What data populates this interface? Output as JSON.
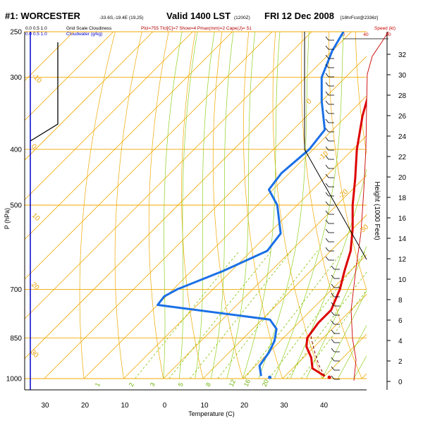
{
  "header": {
    "station": "#1: WORCESTER",
    "coords": "-33.6S,-19.4E (19,25)",
    "valid": "Valid 1400 LST",
    "utc": "(1200Z)",
    "date": "FRI 12 Dec 2008",
    "forecast": "[18hrFcst@2336z]"
  },
  "legend": {
    "cloud_scale_values": "0.0   0.5   1.0",
    "cloud_scale_label": "Grid Scale Cloudiness",
    "cloudwater_values": "0.0   0.5   1.0",
    "cloudwater_label": "Cloudwater (g/kg)",
    "indices": "Plcl=755 Tlcl[C]=7 Show=4 Pmax(mm)=2 Cape(J)= 51",
    "speed_label": "Speed (kt)",
    "speed_ticks": [
      "0",
      "40",
      "80"
    ]
  },
  "axes": {
    "ylabel": "P (hPa)",
    "xlabel": "Temperature (C)",
    "right_label": "Height (1000 Feet)",
    "p_ticks": [
      "250",
      "300",
      "400",
      "500",
      "700",
      "850",
      "1000"
    ],
    "t_ticks": [
      "30",
      "20",
      "10",
      "0",
      "10",
      "20",
      "30",
      "40"
    ],
    "h_ticks": [
      "32",
      "30",
      "28",
      "26",
      "24",
      "22",
      "20",
      "18",
      "16",
      "14",
      "12",
      "10",
      "8",
      "6",
      "4",
      "2",
      "0"
    ]
  },
  "isotherm_labels": [
    "0",
    "-10",
    "-20",
    "-30"
  ],
  "mixing_labels": [
    "1",
    "2",
    "3",
    "5",
    "8",
    "12",
    "16",
    "20"
  ],
  "left_labels": [
    "-10",
    "0",
    "10",
    "20",
    "30"
  ],
  "colors": {
    "temperature": "#dd0000",
    "dewpoint": "#1a6fe6",
    "isotherm": "#f0a800",
    "dry_adiabat": "#f0a800",
    "moist_adiabat": "#90d020",
    "mixing_ratio": "#80c000",
    "cloud": "#0000cc",
    "wind_profile": "#cc0000"
  },
  "chart_data": {
    "type": "line",
    "title": "#1: WORCESTER",
    "xlabel": "Temperature (C)",
    "ylabel": "P (hPa)",
    "y_scale": "log-pressure",
    "ylim": [
      1000,
      250
    ],
    "skew": "skew-T",
    "series": [
      {
        "name": "Temperature",
        "color": "#dd0000",
        "points": [
          {
            "p": 990,
            "t": 30.0
          },
          {
            "p": 960,
            "t": 25.0
          },
          {
            "p": 920,
            "t": 22.0
          },
          {
            "p": 880,
            "t": 18.0
          },
          {
            "p": 850,
            "t": 16.0
          },
          {
            "p": 800,
            "t": 15.0
          },
          {
            "p": 760,
            "t": 15.0
          },
          {
            "p": 740,
            "t": 14.0
          },
          {
            "p": 700,
            "t": 12.0
          },
          {
            "p": 650,
            "t": 8.5
          },
          {
            "p": 600,
            "t": 5.0
          },
          {
            "p": 550,
            "t": 0.0
          },
          {
            "p": 500,
            "t": -6.0
          },
          {
            "p": 450,
            "t": -12.0
          },
          {
            "p": 400,
            "t": -19.0
          },
          {
            "p": 350,
            "t": -26.0
          },
          {
            "p": 300,
            "t": -33.0
          },
          {
            "p": 270,
            "t": -38.0
          },
          {
            "p": 250,
            "t": -41.0
          }
        ]
      },
      {
        "name": "Dewpoint",
        "color": "#1a6fe6",
        "points": [
          {
            "p": 990,
            "t": 14.0
          },
          {
            "p": 950,
            "t": 11.0
          },
          {
            "p": 900,
            "t": 10.0
          },
          {
            "p": 860,
            "t": 8.5
          },
          {
            "p": 820,
            "t": 6.0
          },
          {
            "p": 790,
            "t": 2.0
          },
          {
            "p": 770,
            "t": -12.0
          },
          {
            "p": 745,
            "t": -30.0
          },
          {
            "p": 720,
            "t": -30.5
          },
          {
            "p": 700,
            "t": -29.0
          },
          {
            "p": 650,
            "t": -22.0
          },
          {
            "p": 600,
            "t": -16.0
          },
          {
            "p": 560,
            "t": -17.0
          },
          {
            "p": 500,
            "t": -25.0
          },
          {
            "p": 470,
            "t": -31.0
          },
          {
            "p": 440,
            "t": -32.0
          },
          {
            "p": 400,
            "t": -31.0
          },
          {
            "p": 370,
            "t": -32.0
          },
          {
            "p": 330,
            "t": -40.0
          },
          {
            "p": 300,
            "t": -46.0
          },
          {
            "p": 270,
            "t": -50.0
          },
          {
            "p": 250,
            "t": -52.0
          }
        ]
      },
      {
        "name": "Parcel",
        "color": "#880000",
        "points": [
          {
            "p": 990,
            "t": 30.0
          },
          {
            "p": 950,
            "t": 26.0
          },
          {
            "p": 900,
            "t": 21.5
          },
          {
            "p": 850,
            "t": 17.0
          },
          {
            "p": 830,
            "t": 15.5
          }
        ]
      }
    ],
    "surface_markers": {
      "temperature": {
        "p": 995,
        "t": 31.5
      },
      "dewpoint": {
        "p": 995,
        "t": 16.5
      }
    }
  }
}
